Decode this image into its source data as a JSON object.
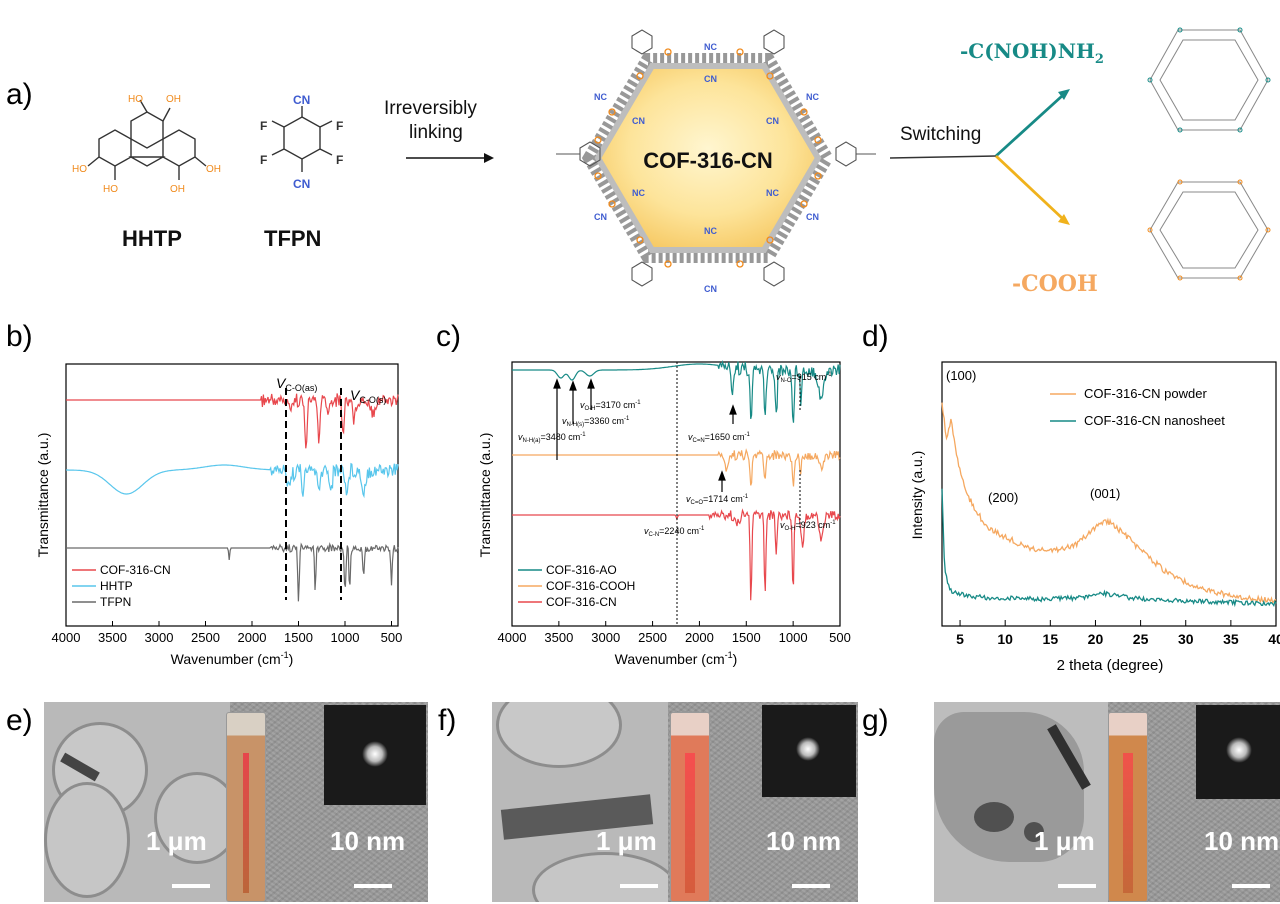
{
  "panels": {
    "a": "a)",
    "b": "b)",
    "c": "c)",
    "d": "d)",
    "e": "e)",
    "f": "f)",
    "g": "g)"
  },
  "scheme": {
    "hhtp": "HHTP",
    "tfpn": "TFPN",
    "oh": "OH",
    "ho": "HO",
    "f": "F",
    "cn": "CN",
    "nc": "NC",
    "arrow1_line1": "Irreversibly",
    "arrow1_line2": "linking",
    "cof": "COF-316-CN",
    "switching": "Switching",
    "ao_group": "-C(NOH)NH",
    "ao_sub": "2",
    "cooh_group": "-COOH"
  },
  "colors": {
    "cn": "#3f5cd0",
    "oh": "#f08a1c",
    "teal": "#178a86",
    "orange": "#f5a860",
    "red": "#e8484d",
    "cyan": "#58c6ec",
    "gray": "#6a6a6a"
  },
  "chart_b": {
    "xlabel": "Wavenumber (cm",
    "xlabel_sup": "-1",
    "xlabel_end": ")",
    "ylabel": "Transmittance (a.u.)",
    "xticks": [
      "4000",
      "3500",
      "3000",
      "2500",
      "2000",
      "1500",
      "1000",
      "500"
    ],
    "xlim": [
      4000,
      430
    ],
    "legend": [
      "COF-316-CN",
      "HHTP",
      "TFPN"
    ],
    "ann1": "V",
    "ann1_sub": "C-O(as)",
    "ann2": "V",
    "ann2_sub": "C-O(s)"
  },
  "chart_c": {
    "xlabel": "Wavenumber (cm",
    "xlabel_sup": "-1",
    "xlabel_end": ")",
    "ylabel": "Transmittance (a.u.)",
    "xticks": [
      "4000",
      "3500",
      "3000",
      "2500",
      "2000",
      "1500",
      "1000",
      "500"
    ],
    "xlim": [
      4000,
      500
    ],
    "legend": [
      "COF-316-AO",
      "COF-316-COOH",
      "COF-316-CN"
    ],
    "anns": [
      {
        "v": "v",
        "sub": "N-O",
        "rest": "=915 cm",
        "sup": "-1"
      },
      {
        "v": "v",
        "sub": "O-H",
        "rest": "=3170 cm",
        "sup": "-1"
      },
      {
        "v": "v",
        "sub": "N-H(s)",
        "rest": "=3360 cm",
        "sup": "-1"
      },
      {
        "v": "v",
        "sub": "N-H(a)",
        "rest": "=3480 cm",
        "sup": "-1"
      },
      {
        "v": "v",
        "sub": "C=N",
        "rest": "=1650 cm",
        "sup": "-1"
      },
      {
        "v": "v",
        "sub": "C=O",
        "rest": "=1714 cm",
        "sup": "-1"
      },
      {
        "v": "v",
        "sub": "C-N",
        "rest": "=2240 cm",
        "sup": "-1"
      },
      {
        "v": "v",
        "sub": "O-H",
        "rest": "=923 cm",
        "sup": "-1"
      }
    ]
  },
  "chart_data": {
    "type": "line",
    "xlabel": "2 theta (degree)",
    "ylabel": "Intensity (a.u.)",
    "xlim": [
      3,
      40
    ],
    "xticks": [
      "5",
      "10",
      "15",
      "20",
      "25",
      "30",
      "35",
      "40"
    ],
    "legend_position": "top-right",
    "series": [
      {
        "name": "COF-316-CN powder",
        "x": [
          3,
          3.5,
          4,
          4.5,
          5,
          6,
          7,
          8,
          10,
          12,
          14,
          16,
          18,
          20,
          21.3,
          23,
          25,
          28,
          31,
          34,
          37,
          40
        ],
        "y": [
          0.92,
          0.76,
          0.85,
          0.72,
          0.62,
          0.5,
          0.43,
          0.37,
          0.33,
          0.29,
          0.27,
          0.27,
          0.3,
          0.37,
          0.4,
          0.35,
          0.27,
          0.17,
          0.11,
          0.08,
          0.06,
          0.05
        ]
      },
      {
        "name": "COF-316-CN nanosheet",
        "x": [
          3,
          3.3,
          3.8,
          4.5,
          6,
          8,
          10,
          14,
          18,
          21,
          24,
          28,
          32,
          36,
          40
        ],
        "y": [
          0.47,
          0.12,
          0.04,
          0.02,
          0.01,
          0.0,
          0.0,
          -0.005,
          0.0,
          0.018,
          0.0,
          -0.01,
          -0.015,
          -0.02,
          -0.025
        ]
      }
    ],
    "annotations": [
      "(100)",
      "(200)",
      "(001)"
    ]
  },
  "tem": {
    "scale_low": "1 μm",
    "scale_high": "10 nm"
  }
}
